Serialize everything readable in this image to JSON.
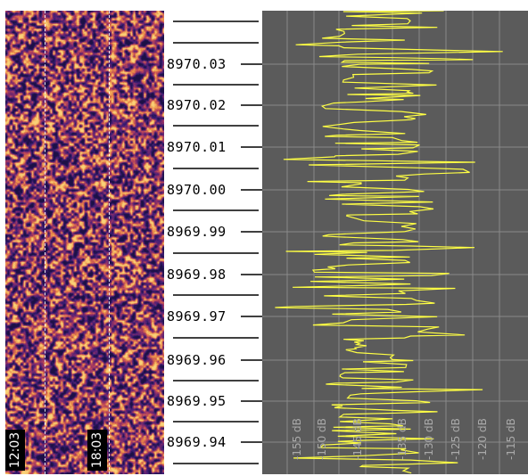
{
  "waterfall": {
    "time_markers": [
      "12:03",
      "18:03"
    ],
    "colors": {
      "background": "#2a1a5e",
      "hot": "#e07a3a",
      "warm": "#a0305a",
      "cool": "#3b2575"
    }
  },
  "frequency_scale": {
    "labels": [
      "8970.03",
      "8970.02",
      "8970.01",
      "8970.00",
      "8969.99",
      "8969.98",
      "8969.97",
      "8969.96",
      "8969.95",
      "8969.94"
    ]
  },
  "spectrum": {
    "db_labels": [
      "-155 dB",
      "-150 dB",
      "-145 dB",
      "-135 dB",
      "-130 dB",
      "-125 dB",
      "-120 dB",
      "-115 dB"
    ],
    "trace_color": "#ffff44",
    "grid_color": "#8a8a8a",
    "background": "#5b5b5b"
  }
}
